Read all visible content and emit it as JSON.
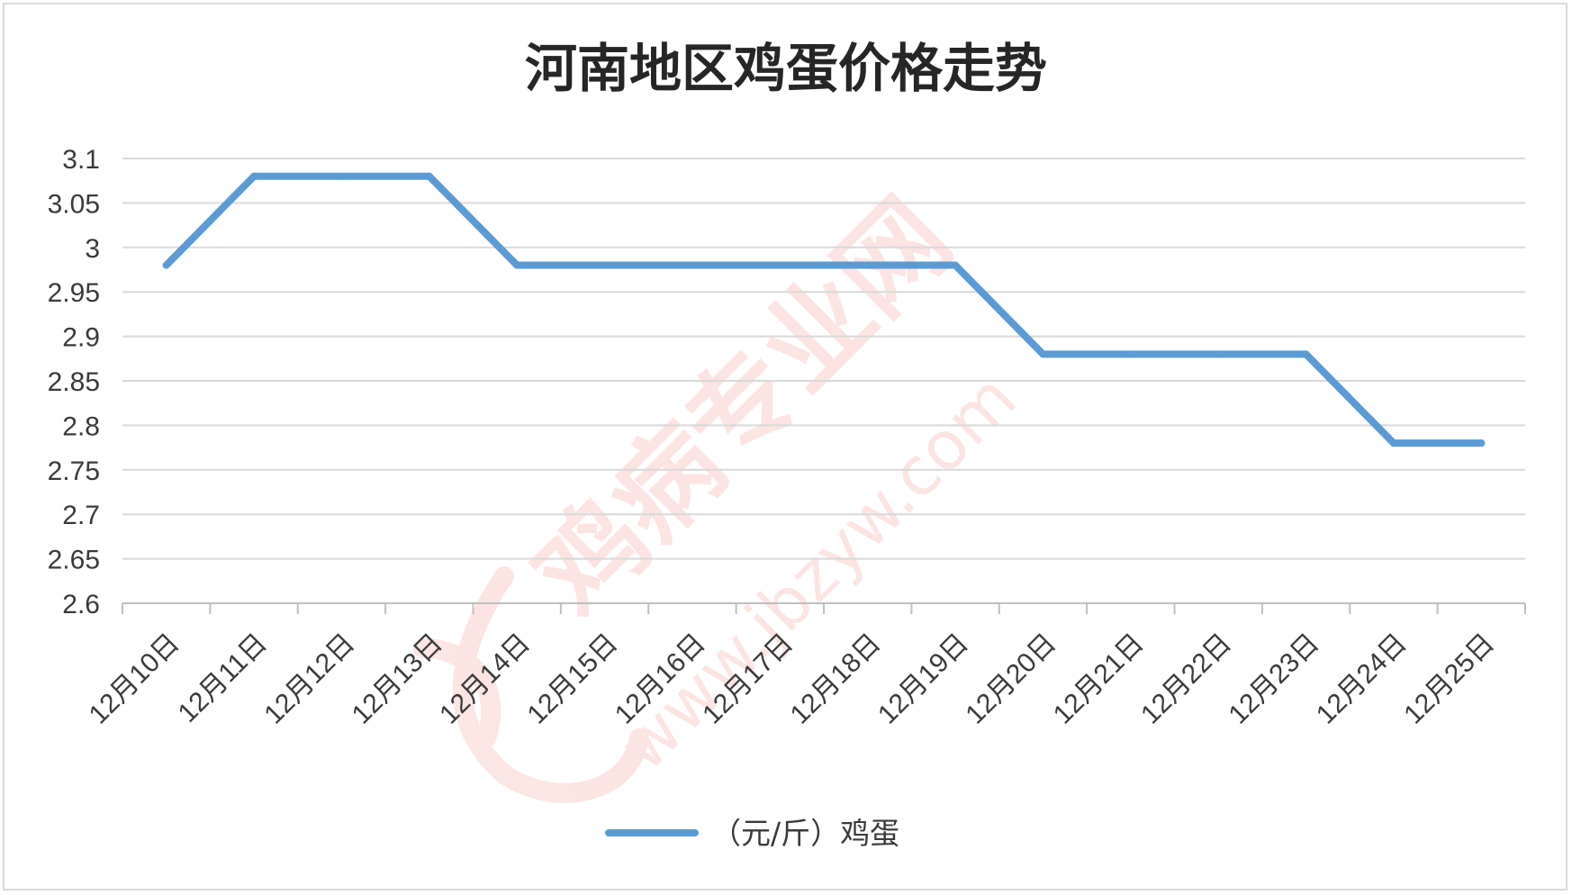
{
  "chart_data": {
    "type": "line",
    "title": "河南地区鸡蛋价格走势",
    "categories": [
      "12月10日",
      "12月11日",
      "12月12日",
      "12月13日",
      "12月14日",
      "12月15日",
      "12月16日",
      "12月17日",
      "12月18日",
      "12月19日",
      "12月20日",
      "12月21日",
      "12月22日",
      "12月23日",
      "12月24日",
      "12月25日"
    ],
    "series": [
      {
        "name": "（元/斤）鸡蛋",
        "values": [
          2.98,
          3.08,
          3.08,
          3.08,
          2.98,
          2.98,
          2.98,
          2.98,
          2.98,
          2.98,
          2.88,
          2.88,
          2.88,
          2.88,
          2.78,
          2.78
        ],
        "color": "#5b9bd5"
      }
    ],
    "ylim": [
      2.6,
      3.1
    ],
    "yticks": [
      "2.6",
      "2.65",
      "2.7",
      "2.75",
      "2.8",
      "2.85",
      "2.9",
      "2.95",
      "3",
      "3.05",
      "3.1"
    ],
    "grid": true,
    "legend": "bottom",
    "xlabel": "",
    "ylabel": ""
  },
  "watermark": {
    "brand": "鸡病专业网",
    "url": "www.jbzyw.com",
    "color": "#e23a2a"
  }
}
